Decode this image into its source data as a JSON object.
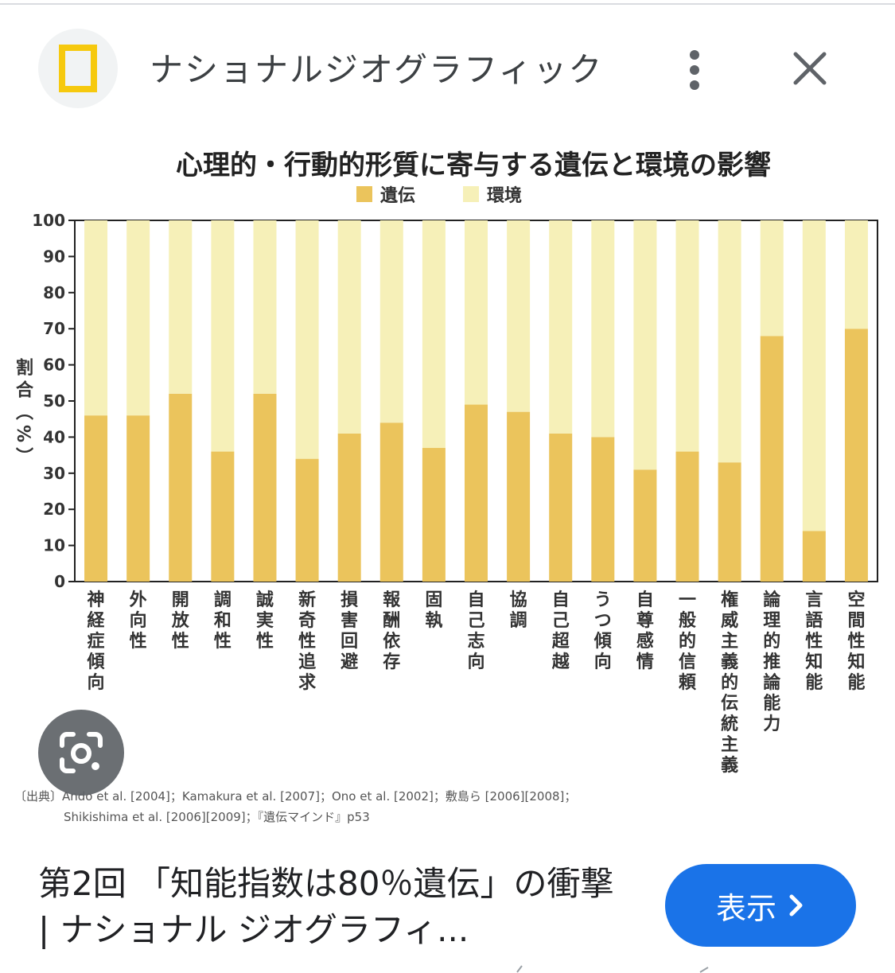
{
  "header": {
    "site_title": "ナショナルジオグラフィック",
    "logo_icon": "national-geographic-yellow-frame",
    "more_icon": "more-vert-icon",
    "close_icon": "close-icon"
  },
  "chart_data": {
    "type": "bar",
    "stacked": true,
    "title": "心理的・行動的形質に寄与する遺伝と環境の影響",
    "ylabel": "割合（%）",
    "xlabel": "",
    "ylim": [
      0,
      100
    ],
    "yticks": [
      "0",
      "10",
      "20",
      "30",
      "40",
      "50",
      "60",
      "70",
      "80",
      "90",
      "100"
    ],
    "legend_position": "top-center",
    "grid": false,
    "categories": [
      "神経症傾向",
      "外向性",
      "開放性",
      "調和性",
      "誠実性",
      "新奇性追求",
      "損害回避",
      "報酬依存",
      "固執",
      "自己志向",
      "協調",
      "自己超越",
      "うつ傾向",
      "自尊感情",
      "一般的信頼",
      "権威主義的伝統主義",
      "論理的推論能力",
      "言語性知能",
      "空間性知能"
    ],
    "series": [
      {
        "name": "遺伝",
        "color": "#ebc45c",
        "values": [
          46,
          46,
          52,
          36,
          52,
          34,
          41,
          44,
          37,
          49,
          47,
          41,
          40,
          31,
          36,
          33,
          68,
          14,
          70
        ]
      },
      {
        "name": "環境",
        "color": "#f6f0b8",
        "values": [
          54,
          54,
          48,
          64,
          48,
          66,
          59,
          56,
          63,
          51,
          53,
          59,
          60,
          69,
          64,
          67,
          32,
          86,
          30
        ]
      }
    ],
    "source_line1": "〔出典〕Ando et al. [2004]；Kamakura et al. [2007]；Ono et al. [2002]；敷島ら [2006][2008]；",
    "source_line2": "Shikishima et al. [2006][2009]；『遺伝マインド』p53"
  },
  "lens": {
    "icon": "google-lens-icon"
  },
  "caption": {
    "text": "第2回 「知能指数は80％遺伝」の衝撃 | ナショナル ジオグラフィ..."
  },
  "view_button": {
    "label": "表示",
    "icon": "chevron-right-icon",
    "color": "#1a73e8"
  }
}
